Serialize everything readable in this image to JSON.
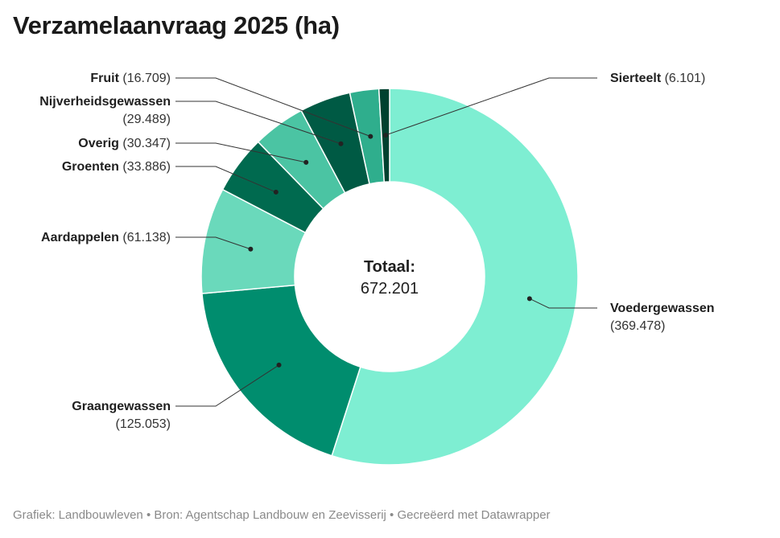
{
  "title": "Verzamelaanvraag 2025 (ha)",
  "footer": "Grafiek: Landbouwleven • Bron: Agentschap Landbouw en Zeevisserij • Gecreëerd met Datawrapper",
  "chart_data": {
    "type": "pie",
    "variant": "donut",
    "title": "Verzamelaanvraag 2025 (ha)",
    "center_label": "Totaal:",
    "center_value": "672.201",
    "total": 672201,
    "slices": [
      {
        "name": "Voedergewassen",
        "value": 369478,
        "value_text": "369.478",
        "color": "#7eeed2"
      },
      {
        "name": "Graangewassen",
        "value": 125053,
        "value_text": "125.053",
        "color": "#008d6e"
      },
      {
        "name": "Aardappelen",
        "value": 61138,
        "value_text": "61.138",
        "color": "#6ad9bb"
      },
      {
        "name": "Groenten",
        "value": 33886,
        "value_text": "33.886",
        "color": "#006a4f"
      },
      {
        "name": "Overig",
        "value": 30347,
        "value_text": "30.347",
        "color": "#4bc4a3"
      },
      {
        "name": "Nijverheidsgewassen",
        "value": 29489,
        "value_text": "29.489",
        "color": "#005a44"
      },
      {
        "name": "Fruit",
        "value": 16709,
        "value_text": "16.709",
        "color": "#2fae8d"
      },
      {
        "name": "Sierteelt",
        "value": 6101,
        "value_text": "6.101",
        "color": "#00412f"
      }
    ]
  }
}
